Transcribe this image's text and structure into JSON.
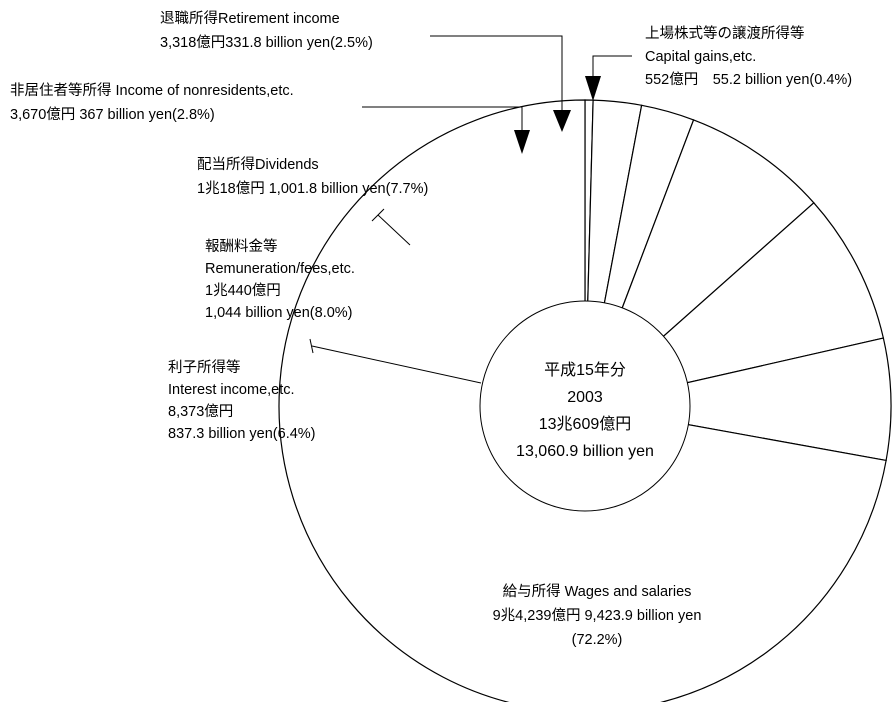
{
  "chart_data": {
    "type": "pie",
    "title": "",
    "center": {
      "line1": "平成15年分",
      "line2": "2003",
      "line3": "13兆609億円",
      "line4": "13,060.9 billion yen"
    },
    "slices": [
      {
        "key": "capital",
        "value": 55.2,
        "percent": 0.4,
        "lines": [
          "上場株式等の譲渡所得等",
          "Capital gains,etc.",
          "552億円　55.2 billion yen(0.4%)"
        ]
      },
      {
        "key": "retirement",
        "value": 331.8,
        "percent": 2.5,
        "lines": [
          "退職所得Retirement income",
          "3,318億円331.8 billion yen(2.5%)"
        ]
      },
      {
        "key": "nonresident",
        "value": 367,
        "percent": 2.8,
        "lines": [
          "非居住者等所得  Income of nonresidents,etc.",
          "3,670億円  367 billion yen(2.8%)"
        ]
      },
      {
        "key": "dividends",
        "value": 1001.8,
        "percent": 7.7,
        "lines": [
          "配当所得Dividends",
          "1兆18億円  1,001.8 billion yen(7.7%)"
        ]
      },
      {
        "key": "remuneration",
        "value": 1044,
        "percent": 8.0,
        "lines": [
          "報酬料金等",
          "Remuneration/fees,etc.",
          "1兆440億円",
          "1,044 billion yen(8.0%)"
        ]
      },
      {
        "key": "interest",
        "value": 837.3,
        "percent": 6.4,
        "lines": [
          "利子所得等",
          "Interest income,etc.",
          "8,373億円",
          "837.3 billion yen(6.4%)"
        ]
      },
      {
        "key": "wages",
        "value": 9423.9,
        "percent": 72.2,
        "lines": [
          "給与所得  Wages and salaries",
          "9兆4,239億円  9,423.9 billion yen",
          "(72.2%)"
        ]
      }
    ]
  }
}
